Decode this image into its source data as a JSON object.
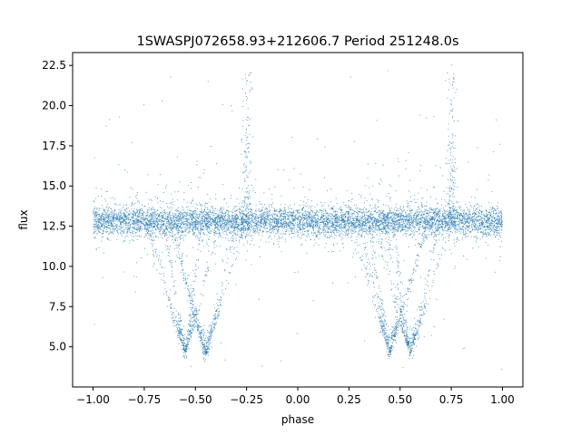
{
  "chart_data": {
    "type": "scatter",
    "title": "1SWASPJ072658.93+212606.7 Period 251248.0s",
    "xlabel": "phase",
    "ylabel": "flux",
    "xlim": [
      -1.1,
      1.1
    ],
    "ylim": [
      2.5,
      23.3
    ],
    "xticks": [
      -1.0,
      -0.75,
      -0.5,
      -0.25,
      0.0,
      0.25,
      0.5,
      0.75,
      1.0
    ],
    "xtick_labels": [
      "−1.00",
      "−0.75",
      "−0.50",
      "−0.25",
      "0.00",
      "0.25",
      "0.50",
      "0.75",
      "1.00"
    ],
    "yticks": [
      5.0,
      7.5,
      10.0,
      12.5,
      15.0,
      17.5,
      20.0,
      22.5
    ],
    "ytick_labels": [
      "5.0",
      "7.5",
      "10.0",
      "12.5",
      "15.0",
      "17.5",
      "20.0",
      "22.5"
    ],
    "grid": false,
    "marker_color": "#1f77b4",
    "series": [
      {
        "baseline_flux": 12.8,
        "baseline_scatter": 0.45,
        "x_range": [
          -1.0,
          1.0
        ],
        "features": [
          {
            "kind": "dip",
            "phase": -0.55,
            "min_flux": 4.5
          },
          {
            "kind": "dip",
            "phase": -0.45,
            "min_flux": 4.4
          },
          {
            "kind": "dip",
            "phase": 0.45,
            "min_flux": 4.5
          },
          {
            "kind": "dip",
            "phase": 0.55,
            "min_flux": 4.4
          },
          {
            "kind": "spike",
            "phase": -0.25,
            "max_flux": 22.4
          },
          {
            "kind": "spike",
            "phase": 0.75,
            "max_flux": 22.4
          }
        ]
      }
    ]
  }
}
